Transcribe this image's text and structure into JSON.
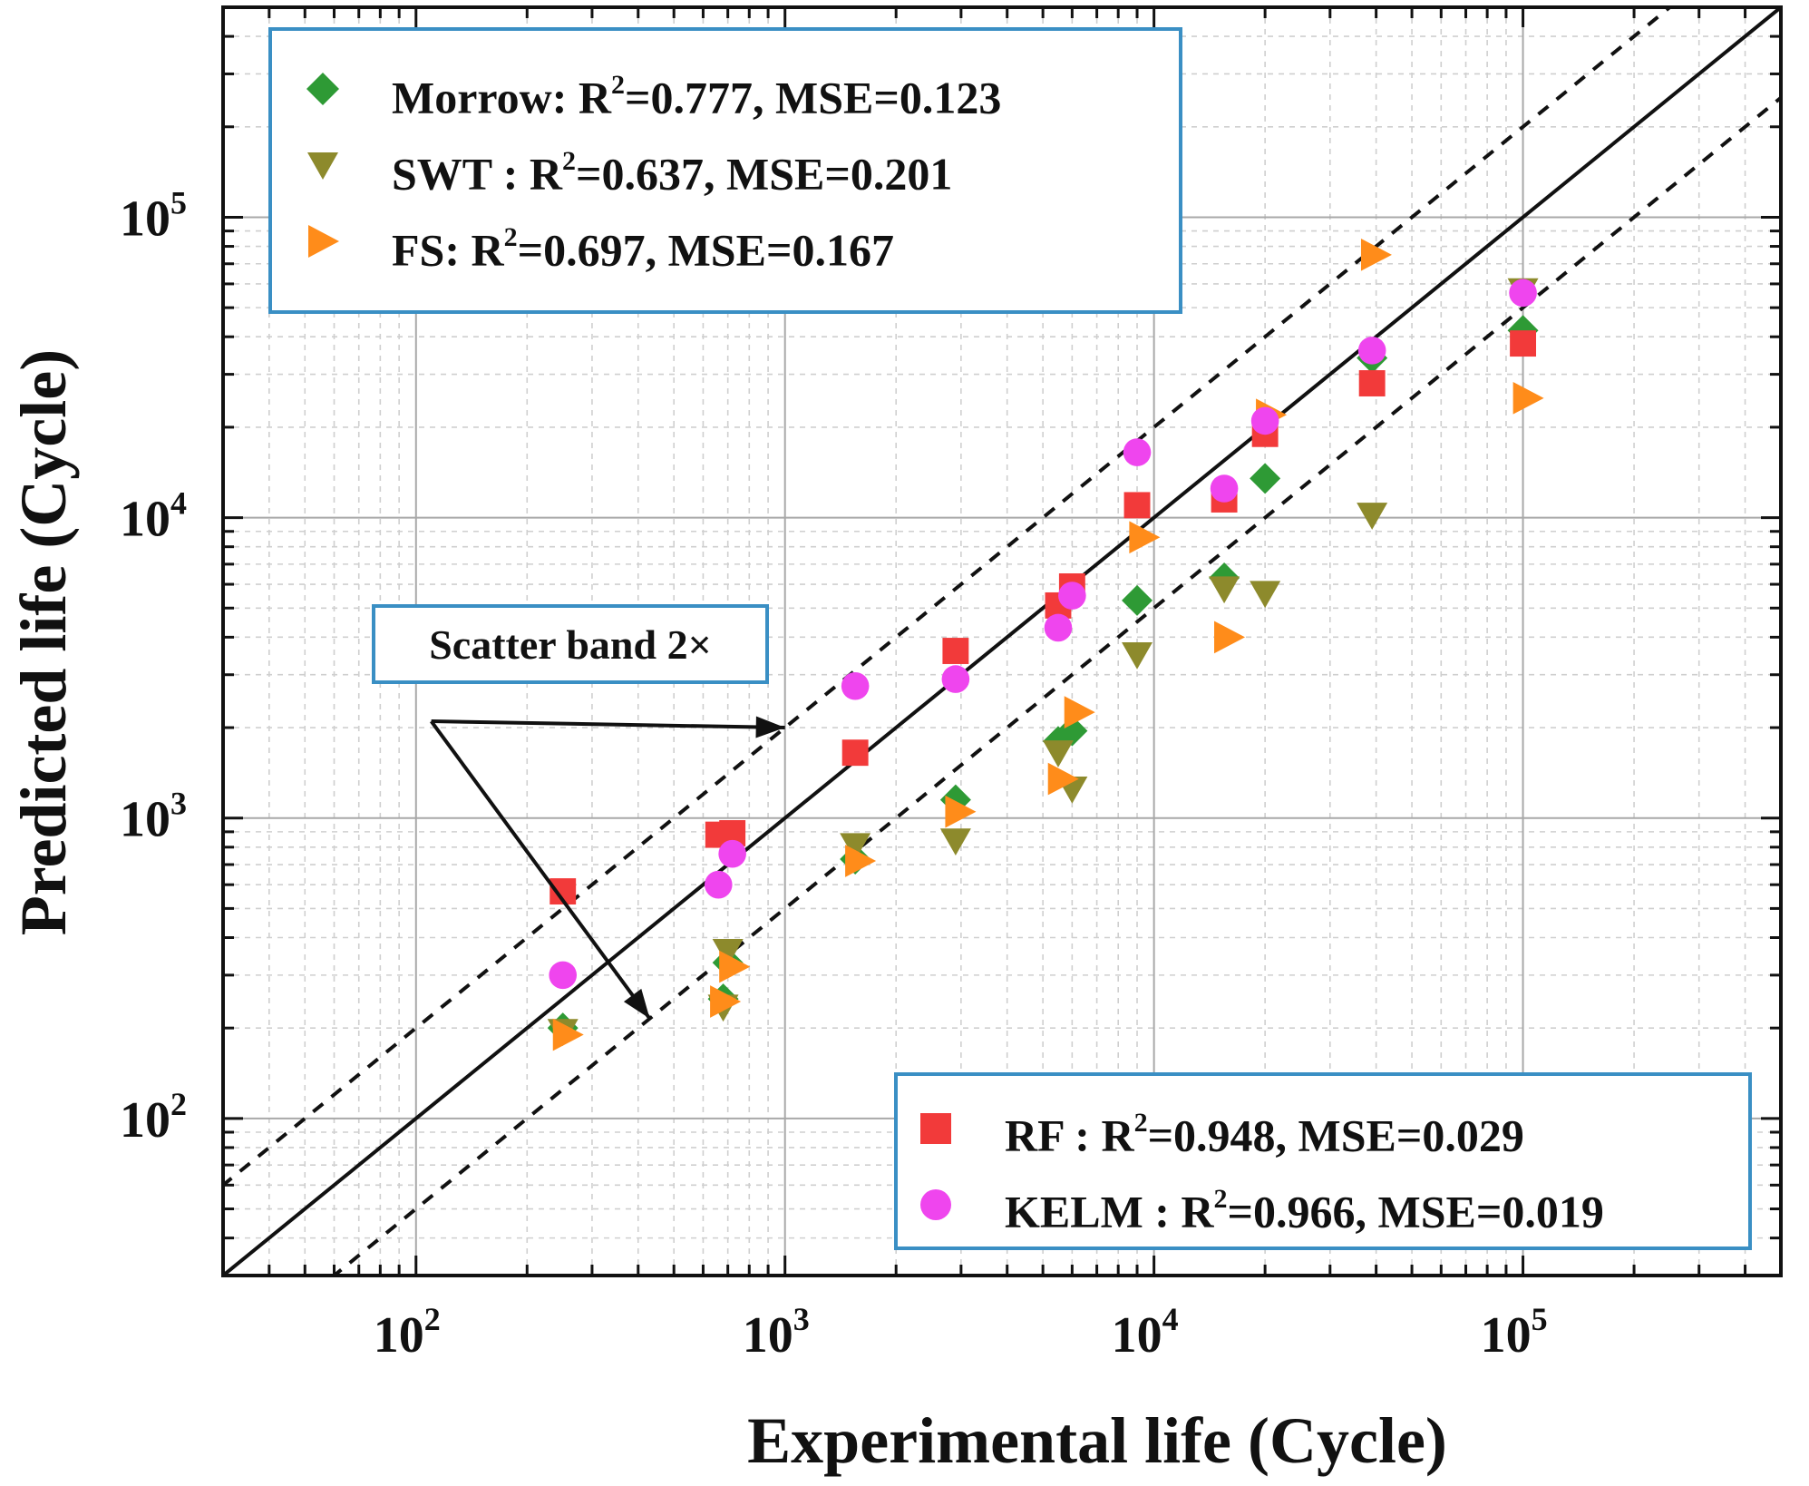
{
  "chart_data": {
    "type": "scatter",
    "xscale": "log",
    "yscale": "log",
    "xlim": [
      30,
      500000
    ],
    "ylim": [
      30,
      500000
    ],
    "xlabel": "Experimental life (Cycle)",
    "ylabel": "Predicted life (Cycle)",
    "x_tick_labels": [
      {
        "value": 100,
        "base": "10",
        "exp": "2"
      },
      {
        "value": 1000,
        "base": "10",
        "exp": "3"
      },
      {
        "value": 10000,
        "base": "10",
        "exp": "4"
      },
      {
        "value": 100000,
        "base": "10",
        "exp": "5"
      }
    ],
    "y_tick_labels": [
      {
        "value": 100,
        "base": "10",
        "exp": "2"
      },
      {
        "value": 1000,
        "base": "10",
        "exp": "3"
      },
      {
        "value": 10000,
        "base": "10",
        "exp": "4"
      },
      {
        "value": 100000,
        "base": "10",
        "exp": "5"
      }
    ],
    "grid": true,
    "reference_lines": [
      {
        "name": "perfect-prediction",
        "factor": 1,
        "style": "solid"
      },
      {
        "name": "upper-scatter-band",
        "factor": 2,
        "style": "dashed"
      },
      {
        "name": "lower-scatter-band",
        "factor": 0.5,
        "style": "dashed"
      }
    ],
    "annotation": {
      "text": "Scatter band 2×",
      "targets": [
        [
          1000,
          2000
        ],
        [
          430,
          215
        ]
      ]
    },
    "series": [
      {
        "name": "Morrow",
        "marker": "diamond",
        "color": "#2e9a35",
        "legend": {
          "label": "Morrow: R",
          "sup": "2",
          "rest": "=0.777, MSE=0.123"
        },
        "points": [
          [
            250,
            200
          ],
          [
            680,
            250
          ],
          [
            700,
            330
          ],
          [
            1550,
            730
          ],
          [
            2900,
            1150
          ],
          [
            5500,
            1800
          ],
          [
            6000,
            1950
          ],
          [
            9000,
            5300
          ],
          [
            15500,
            6300
          ],
          [
            20000,
            13500
          ],
          [
            39000,
            34000
          ],
          [
            100000,
            42000
          ]
        ]
      },
      {
        "name": "SWT",
        "marker": "triangle-down",
        "color": "#8d8a2c",
        "legend": {
          "label": "SWT : R",
          "sup": "2",
          "rest": "=0.637, MSE=0.201"
        },
        "points": [
          [
            250,
            195
          ],
          [
            680,
            235
          ],
          [
            700,
            360
          ],
          [
            1550,
            810
          ],
          [
            2900,
            840
          ],
          [
            5500,
            1650
          ],
          [
            6000,
            1250
          ],
          [
            9000,
            3500
          ],
          [
            15500,
            5800
          ],
          [
            20000,
            5600
          ],
          [
            39000,
            10200
          ],
          [
            100000,
            57000
          ]
        ]
      },
      {
        "name": "FS",
        "marker": "triangle-right",
        "color": "#ff8c1a",
        "legend": {
          "label": "FS: R",
          "sup": "2",
          "rest": "=0.697, MSE=0.167"
        },
        "points": [
          [
            255,
            190
          ],
          [
            680,
            245
          ],
          [
            720,
            320
          ],
          [
            1580,
            720
          ],
          [
            2950,
            1050
          ],
          [
            5600,
            1350
          ],
          [
            6200,
            2250
          ],
          [
            9300,
            8600
          ],
          [
            15800,
            4000
          ],
          [
            20500,
            22000
          ],
          [
            39500,
            75000
          ],
          [
            102000,
            25000
          ]
        ]
      },
      {
        "name": "RF",
        "marker": "square",
        "color": "#f23a3a",
        "legend": {
          "label": "RF : R",
          "sup": "2",
          "rest": "=0.948, MSE=0.029"
        },
        "points": [
          [
            250,
            570
          ],
          [
            660,
            880
          ],
          [
            720,
            890
          ],
          [
            1550,
            1650
          ],
          [
            2900,
            3600
          ],
          [
            5500,
            5100
          ],
          [
            6000,
            5900
          ],
          [
            9000,
            11000
          ],
          [
            15500,
            11500
          ],
          [
            20000,
            19000
          ],
          [
            39000,
            28000
          ],
          [
            100000,
            38000
          ]
        ]
      },
      {
        "name": "KELM",
        "marker": "circle",
        "color": "#ef45ee",
        "legend": {
          "label": "KELM : R",
          "sup": "2",
          "rest": "=0.966, MSE=0.019"
        },
        "points": [
          [
            250,
            300
          ],
          [
            660,
            600
          ],
          [
            720,
            760
          ],
          [
            1550,
            2750
          ],
          [
            2900,
            2900
          ],
          [
            5500,
            4300
          ],
          [
            6000,
            5500
          ],
          [
            9000,
            16500
          ],
          [
            15500,
            12500
          ],
          [
            20000,
            21000
          ],
          [
            39000,
            36000
          ],
          [
            100000,
            56000
          ]
        ]
      }
    ]
  }
}
